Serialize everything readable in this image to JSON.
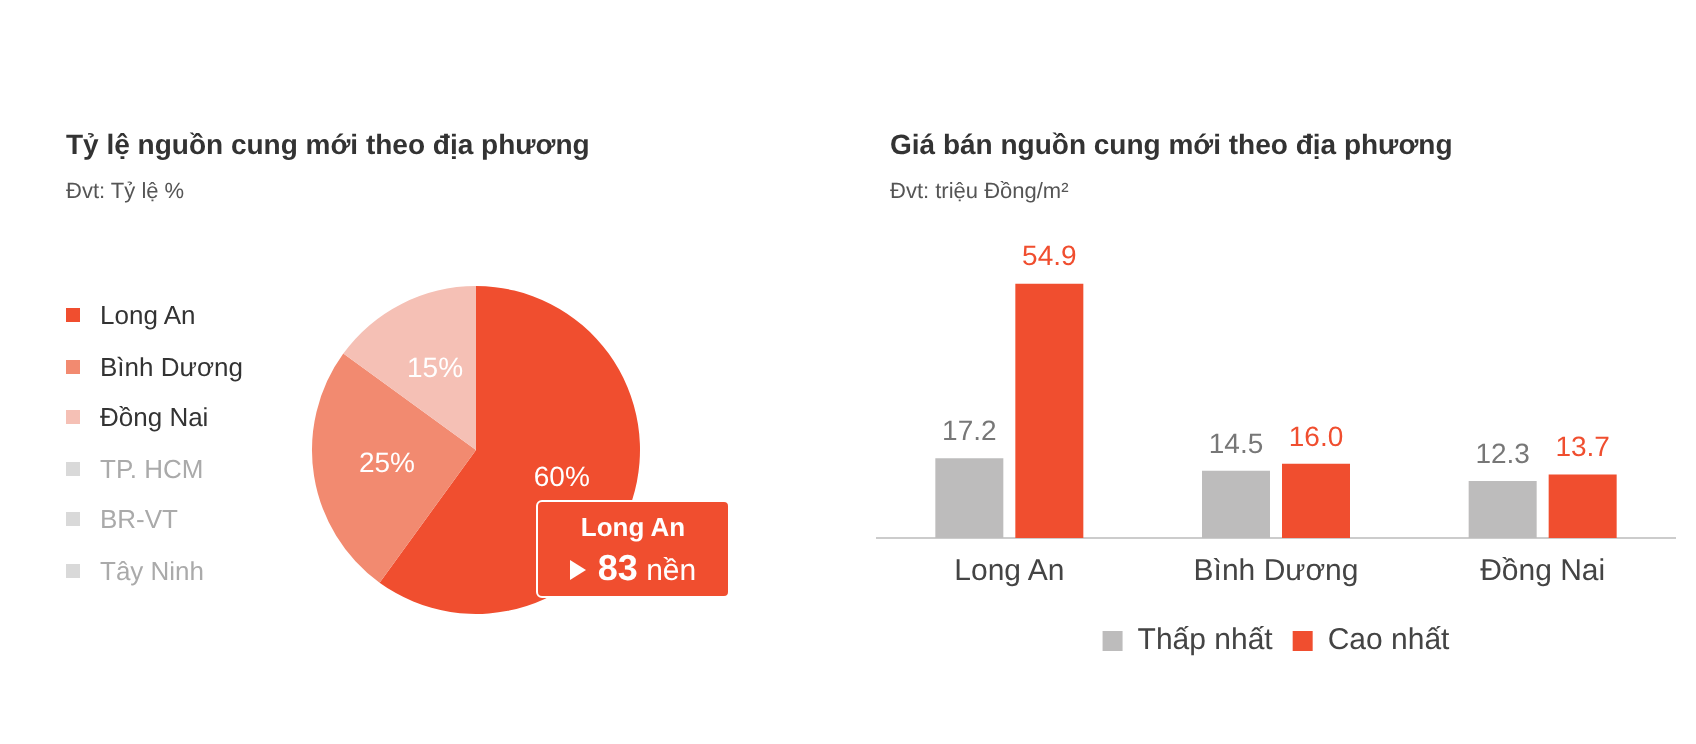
{
  "chart_data": [
    {
      "type": "pie",
      "title": "Tỷ lệ nguồn cung mới theo địa phương",
      "subtitle": "Đvt: Tỷ lệ %",
      "categories": [
        "Long An",
        "Bình Dương",
        "Đồng Nai",
        "TP. HCM",
        "BR-VT",
        "Tây Ninh"
      ],
      "values": [
        60,
        25,
        15,
        0,
        0,
        0
      ],
      "colors": [
        "#f04e2f",
        "#f28a70",
        "#f5c0b5",
        "#d9d9d9",
        "#d9d9d9",
        "#d9d9d9"
      ],
      "value_labels": [
        "60%",
        "25%",
        "15%",
        null,
        null,
        null
      ],
      "legend": "left",
      "annotations": [
        "Long An",
        "83 nền"
      ]
    },
    {
      "type": "bar",
      "title": "Giá bán nguồn cung mới theo địa phương",
      "subtitle": "Đvt: triệu Đồng/m²",
      "categories": [
        "Long An",
        "Bình Dương",
        "Đồng Nai"
      ],
      "series": [
        {
          "name": "Thấp nhất",
          "color": "#bdbcbc",
          "values": [
            17.2,
            14.5,
            12.3
          ],
          "value_labels": [
            "17.2",
            "14.5",
            "12.3"
          ]
        },
        {
          "name": "Cao nhất",
          "color": "#f04e2f",
          "values": [
            54.9,
            16.0,
            13.7
          ],
          "value_labels": [
            "54.9",
            "16.0",
            "13.7"
          ]
        }
      ],
      "legend": "bottom",
      "tick_labels": "x",
      "grid": false
    }
  ]
}
